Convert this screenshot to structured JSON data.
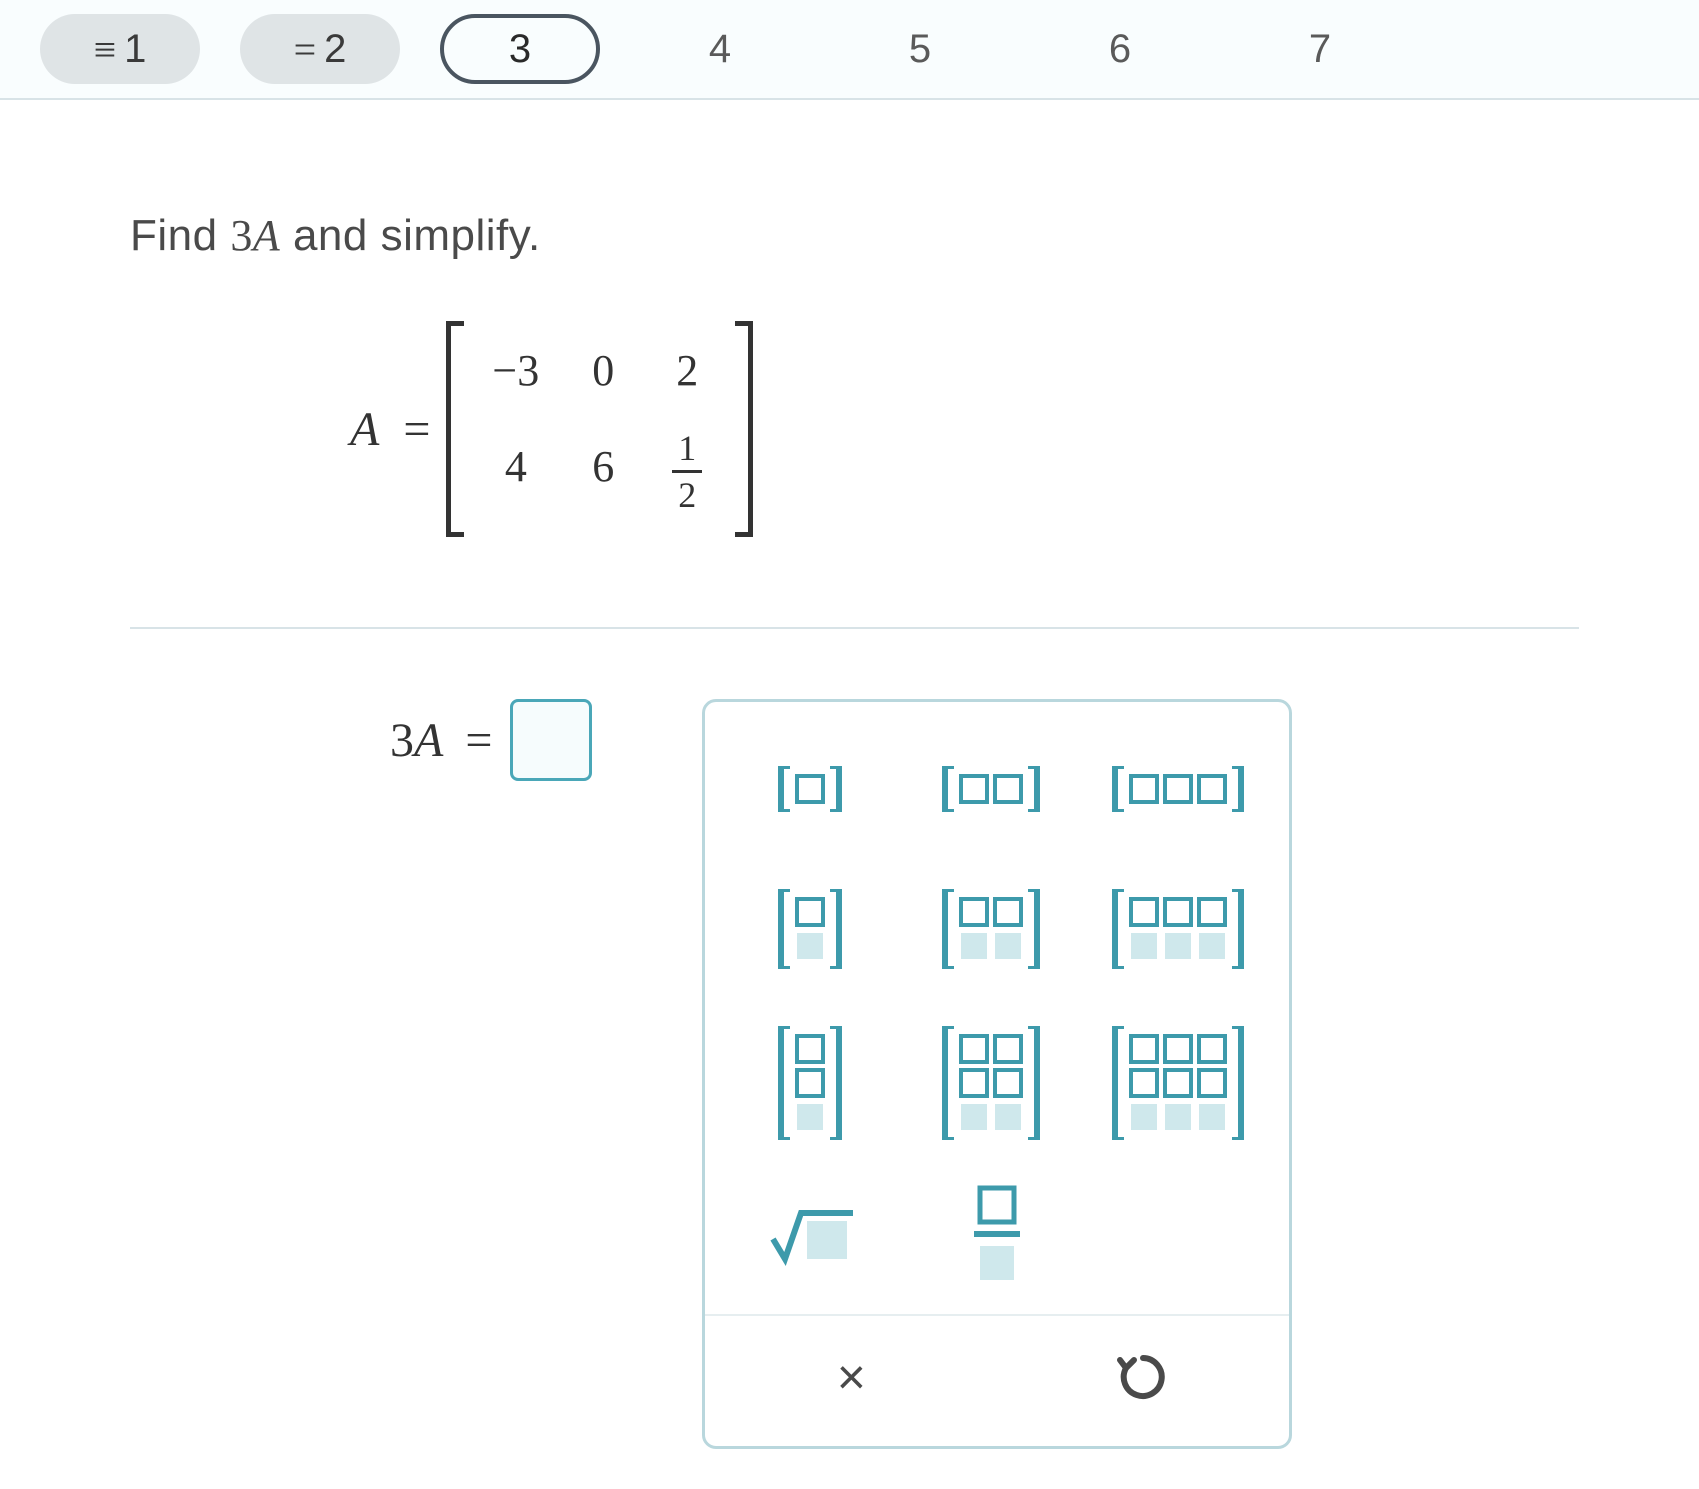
{
  "colors": {
    "page_bg": "#ffffff",
    "tab_bg_done": "#dfe4e6",
    "tab_border_current": "#4a5560",
    "divider": "#d8e3e7",
    "text": "#4a4a4a",
    "math_text": "#333333",
    "input_border": "#4aa7b8",
    "input_bg": "#f6fcfd",
    "palette_border": "#b9d7dd",
    "palette_icon": "#3d9aab",
    "action_icon": "#4a4a4a"
  },
  "tabs": [
    {
      "label": "1",
      "status": "done",
      "prefix": "≡"
    },
    {
      "label": "2",
      "status": "done",
      "prefix": "="
    },
    {
      "label": "3",
      "status": "current",
      "prefix": ""
    },
    {
      "label": "4",
      "status": "pending",
      "prefix": ""
    },
    {
      "label": "5",
      "status": "pending",
      "prefix": ""
    },
    {
      "label": "6",
      "status": "pending",
      "prefix": ""
    },
    {
      "label": "7",
      "status": "pending",
      "prefix": ""
    }
  ],
  "question": {
    "prefix": "Find ",
    "expr_scalar": "3",
    "expr_var": "A",
    "suffix": " and simplify."
  },
  "matrix": {
    "name": "A",
    "rows": 2,
    "cols": 3,
    "cells": {
      "r0c0": "−3",
      "r0c1": "0",
      "r0c2": "2",
      "r1c0": "4",
      "r1c1": "6",
      "r1c2_num": "1",
      "r1c2_den": "2"
    }
  },
  "answer": {
    "lhs_scalar": "3",
    "lhs_var": "A",
    "lhs_eq": "="
  },
  "palette": {
    "matrix_buttons": [
      {
        "name": "matrix-1x1",
        "rows": 1,
        "cols": 1
      },
      {
        "name": "matrix-1x2",
        "rows": 1,
        "cols": 2
      },
      {
        "name": "matrix-1x3",
        "rows": 1,
        "cols": 3
      },
      {
        "name": "matrix-2x1",
        "rows": 2,
        "cols": 1
      },
      {
        "name": "matrix-2x2",
        "rows": 2,
        "cols": 2
      },
      {
        "name": "matrix-2x3",
        "rows": 2,
        "cols": 3
      },
      {
        "name": "matrix-3x1",
        "rows": 3,
        "cols": 1
      },
      {
        "name": "matrix-3x2",
        "rows": 3,
        "cols": 2
      },
      {
        "name": "matrix-3x3",
        "rows": 3,
        "cols": 3
      }
    ],
    "op_buttons": [
      {
        "name": "sqrt-button"
      },
      {
        "name": "fraction-button"
      }
    ],
    "actions": {
      "clear": "×",
      "undo": "↺"
    }
  }
}
